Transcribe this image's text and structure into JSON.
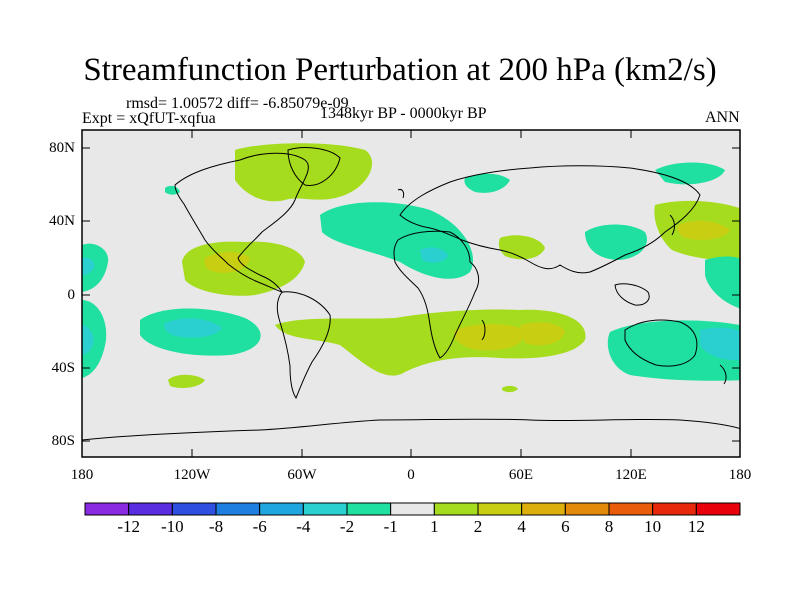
{
  "title": "Streamfunction Perturbation at 200 hPa (km2/s)",
  "stats": "rmsd= 1.00572 diff= -6.85079e-09",
  "experiment": "Expt = xQfUT-xqfua",
  "period": "1348kyr BP - 0000kyr BP",
  "season": "ANN",
  "y_axis_labels": [
    "80N",
    "40N",
    "0",
    "40S",
    "80S"
  ],
  "x_axis_labels": [
    "180",
    "120W",
    "60W",
    "0",
    "60E",
    "120E",
    "180"
  ],
  "colorbar_labels": [
    "-12",
    "-10",
    "-8",
    "-6",
    "-4",
    "-2",
    "-1",
    "1",
    "2",
    "4",
    "6",
    "8",
    "10",
    "12"
  ],
  "colorbar_colors": [
    "#8a2be2",
    "#3a2fd6",
    "#1f5fe0",
    "#1e90e0",
    "#1fb4dc",
    "#2ad0cf",
    "#1fe0a0",
    "#e8e8e8",
    "#a6dc1e",
    "#c8cf12",
    "#dcaf0d",
    "#e48a0a",
    "#e85c0a",
    "#e8280a"
  ],
  "colors": {
    "background": "#e8e8e8",
    "level_1": "#a6dc1e",
    "level_2": "#c8cf12",
    "neg_1": "#1fe0a0",
    "neg_2": "#2ad0cf"
  }
}
